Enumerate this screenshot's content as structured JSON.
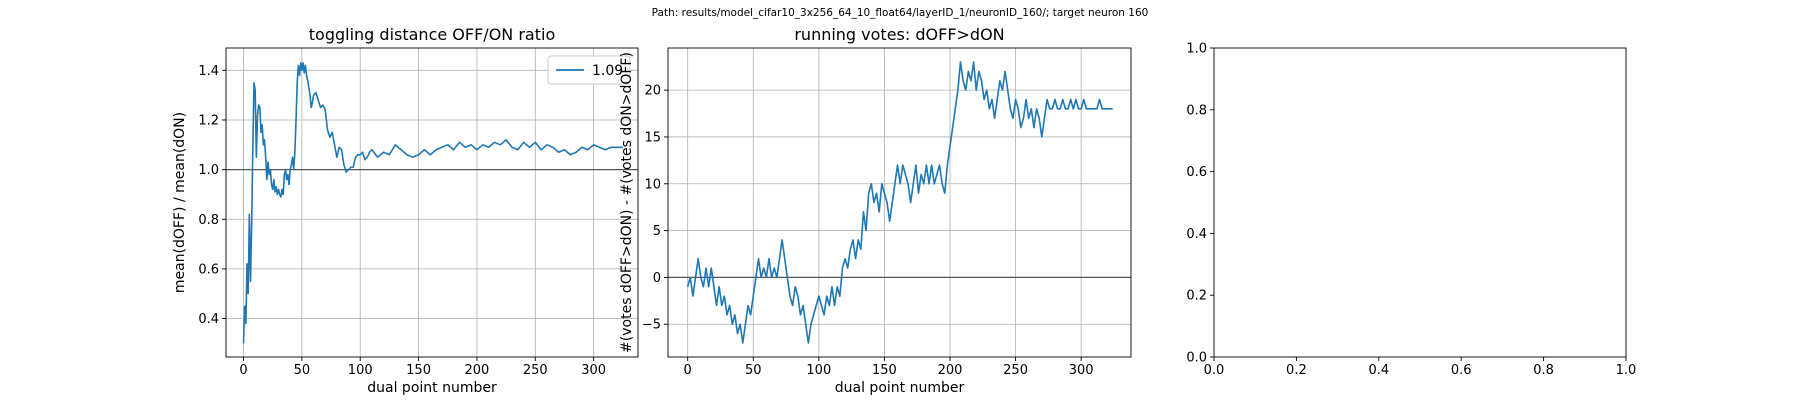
{
  "suptitle": "Path: results/model_cifar10_3x256_64_10_float64/layerID_1/neuronID_160/; target neuron 160",
  "chart_data": [
    {
      "type": "line",
      "title": "toggling distance OFF/ON ratio",
      "xlabel": "dual point number",
      "ylabel": "mean(dOFF) / mean(dON)",
      "xlim": [
        -15,
        338
      ],
      "ylim": [
        0.245,
        1.49
      ],
      "xticks": [
        0,
        50,
        100,
        150,
        200,
        250,
        300
      ],
      "yticks": [
        0.4,
        0.6,
        0.8,
        1.0,
        1.2,
        1.4
      ],
      "ytick_labels": [
        "0.4",
        "0.6",
        "0.8",
        "1.0",
        "1.2",
        "1.4"
      ],
      "grid": true,
      "hline": 1.0,
      "legend": {
        "placement": "upper right",
        "entries": [
          "1.09"
        ]
      },
      "series": [
        {
          "name": "1.09",
          "color": "#1f77b4",
          "x": [
            0,
            1,
            2,
            3,
            4,
            5,
            6,
            7,
            8,
            9,
            10,
            11,
            12,
            13,
            14,
            15,
            16,
            17,
            18,
            19,
            20,
            21,
            22,
            23,
            24,
            25,
            26,
            27,
            28,
            29,
            30,
            31,
            32,
            33,
            34,
            35,
            36,
            37,
            38,
            39,
            40,
            41,
            42,
            43,
            44,
            45,
            46,
            47,
            48,
            49,
            50,
            51,
            52,
            53,
            54,
            55,
            56,
            57,
            58,
            59,
            60,
            62,
            64,
            66,
            68,
            70,
            72,
            74,
            76,
            78,
            80,
            82,
            84,
            86,
            88,
            90,
            92,
            94,
            96,
            98,
            100,
            102,
            104,
            106,
            108,
            110,
            115,
            120,
            125,
            130,
            135,
            140,
            145,
            150,
            155,
            160,
            165,
            170,
            175,
            180,
            185,
            190,
            195,
            200,
            205,
            210,
            215,
            220,
            225,
            230,
            235,
            240,
            245,
            250,
            255,
            260,
            265,
            270,
            275,
            280,
            285,
            290,
            295,
            300,
            305,
            310,
            315,
            320,
            325
          ],
          "y": [
            0.3,
            0.45,
            0.38,
            0.62,
            0.5,
            0.82,
            0.55,
            0.78,
            1.1,
            1.35,
            1.32,
            1.05,
            1.22,
            1.26,
            1.25,
            1.15,
            1.18,
            1.1,
            1.12,
            1.05,
            0.96,
            1.03,
            0.98,
            1.0,
            0.94,
            0.92,
            0.96,
            0.91,
            0.93,
            0.9,
            0.92,
            0.9,
            0.89,
            0.92,
            0.9,
            0.98,
            1.0,
            0.96,
            0.98,
            0.94,
            1.0,
            1.02,
            1.05,
            1.0,
            1.07,
            1.2,
            1.35,
            1.42,
            1.38,
            1.43,
            1.4,
            1.43,
            1.39,
            1.42,
            1.38,
            1.36,
            1.33,
            1.3,
            1.25,
            1.27,
            1.3,
            1.31,
            1.28,
            1.25,
            1.26,
            1.24,
            1.16,
            1.13,
            1.15,
            1.1,
            1.05,
            1.09,
            1.08,
            1.02,
            0.99,
            1.0,
            1.01,
            1.01,
            1.05,
            1.06,
            1.06,
            1.07,
            1.04,
            1.05,
            1.07,
            1.08,
            1.05,
            1.07,
            1.06,
            1.1,
            1.08,
            1.06,
            1.05,
            1.06,
            1.08,
            1.06,
            1.08,
            1.09,
            1.1,
            1.08,
            1.11,
            1.09,
            1.1,
            1.08,
            1.1,
            1.09,
            1.11,
            1.1,
            1.12,
            1.09,
            1.08,
            1.11,
            1.09,
            1.11,
            1.08,
            1.1,
            1.09,
            1.07,
            1.08,
            1.06,
            1.07,
            1.09,
            1.08,
            1.1,
            1.09,
            1.08,
            1.09,
            1.09,
            1.09
          ]
        }
      ]
    },
    {
      "type": "line",
      "title": "running votes: dOFF>dON",
      "xlabel": "dual point number",
      "ylabel": "#(votes dOFF>dON) - #(votes dON>dOFF)",
      "xlim": [
        -15,
        338
      ],
      "ylim": [
        -8.5,
        24.5
      ],
      "xticks": [
        0,
        50,
        100,
        150,
        200,
        250,
        300
      ],
      "yticks": [
        -5,
        0,
        5,
        10,
        15,
        20
      ],
      "ytick_labels": [
        "−5",
        "0",
        "5",
        "10",
        "15",
        "20"
      ],
      "grid": true,
      "hline": 0,
      "series": [
        {
          "name": "",
          "color": "#1f77b4",
          "x": [
            0,
            2,
            4,
            6,
            8,
            10,
            12,
            14,
            16,
            18,
            20,
            22,
            24,
            26,
            28,
            30,
            32,
            34,
            36,
            38,
            40,
            42,
            44,
            46,
            48,
            50,
            52,
            54,
            56,
            58,
            60,
            62,
            64,
            66,
            68,
            70,
            72,
            74,
            76,
            78,
            80,
            82,
            84,
            86,
            88,
            90,
            92,
            94,
            96,
            98,
            100,
            102,
            104,
            106,
            108,
            110,
            112,
            114,
            116,
            118,
            120,
            122,
            124,
            126,
            128,
            130,
            132,
            134,
            136,
            138,
            140,
            142,
            144,
            146,
            148,
            150,
            152,
            154,
            156,
            158,
            160,
            162,
            164,
            166,
            168,
            170,
            172,
            174,
            176,
            178,
            180,
            182,
            184,
            186,
            188,
            190,
            192,
            194,
            196,
            198,
            200,
            202,
            204,
            206,
            208,
            210,
            212,
            214,
            216,
            218,
            220,
            222,
            224,
            226,
            228,
            230,
            232,
            234,
            236,
            238,
            240,
            242,
            244,
            246,
            248,
            250,
            252,
            254,
            256,
            258,
            260,
            262,
            264,
            266,
            268,
            270,
            272,
            274,
            276,
            278,
            280,
            282,
            284,
            286,
            288,
            290,
            292,
            294,
            296,
            298,
            300,
            302,
            304,
            306,
            308,
            310,
            312,
            314,
            316,
            318,
            320,
            322,
            324
          ],
          "y": [
            -1,
            0,
            -2,
            0,
            2,
            0,
            -1,
            1,
            -1,
            1,
            -1,
            -3,
            -1,
            -3,
            -2,
            -4,
            -3,
            -5,
            -4,
            -6,
            -5,
            -7,
            -5,
            -3,
            -4,
            -2,
            0,
            2,
            0,
            1,
            0,
            2,
            0,
            1,
            0,
            2,
            4,
            2,
            0,
            -2,
            -3,
            -1,
            -2,
            -4,
            -3,
            -5,
            -7,
            -5,
            -4,
            -3,
            -2,
            -3,
            -4,
            -2,
            -3,
            -1,
            -3,
            -1,
            -2,
            1,
            2,
            1,
            3,
            4,
            2,
            4,
            3,
            7,
            5,
            9,
            10,
            8,
            9,
            7,
            10,
            9,
            8,
            6,
            8,
            10,
            12,
            10,
            12,
            11,
            10,
            8,
            10,
            12,
            9,
            11,
            10,
            12,
            10,
            12,
            10,
            11,
            12,
            10,
            9,
            12,
            14,
            16,
            18,
            20,
            23,
            21,
            20,
            22,
            21,
            23,
            20,
            22,
            21,
            19,
            20,
            18,
            19,
            17,
            19,
            21,
            20,
            22,
            20,
            18,
            17,
            19,
            18,
            16,
            17,
            19,
            17,
            18,
            16,
            18,
            17,
            15,
            17,
            19,
            18,
            18,
            19,
            18,
            18,
            19,
            18,
            18,
            19,
            18,
            19,
            18,
            18,
            19,
            18,
            18,
            18,
            18,
            18,
            19,
            18,
            18,
            18,
            18,
            18
          ]
        }
      ]
    },
    {
      "type": "line",
      "title": "",
      "xlabel": "",
      "ylabel": "",
      "xlim": [
        0,
        1
      ],
      "ylim": [
        0,
        1
      ],
      "xticks": [
        0,
        0.2,
        0.4,
        0.6,
        0.8,
        1.0
      ],
      "yticks": [
        0,
        0.2,
        0.4,
        0.6,
        0.8,
        1.0
      ],
      "xtick_labels": [
        "0.0",
        "0.2",
        "0.4",
        "0.6",
        "0.8",
        "1.0"
      ],
      "ytick_labels": [
        "0.0",
        "0.2",
        "0.4",
        "0.6",
        "0.8",
        "1.0"
      ],
      "grid": false,
      "series": []
    }
  ]
}
